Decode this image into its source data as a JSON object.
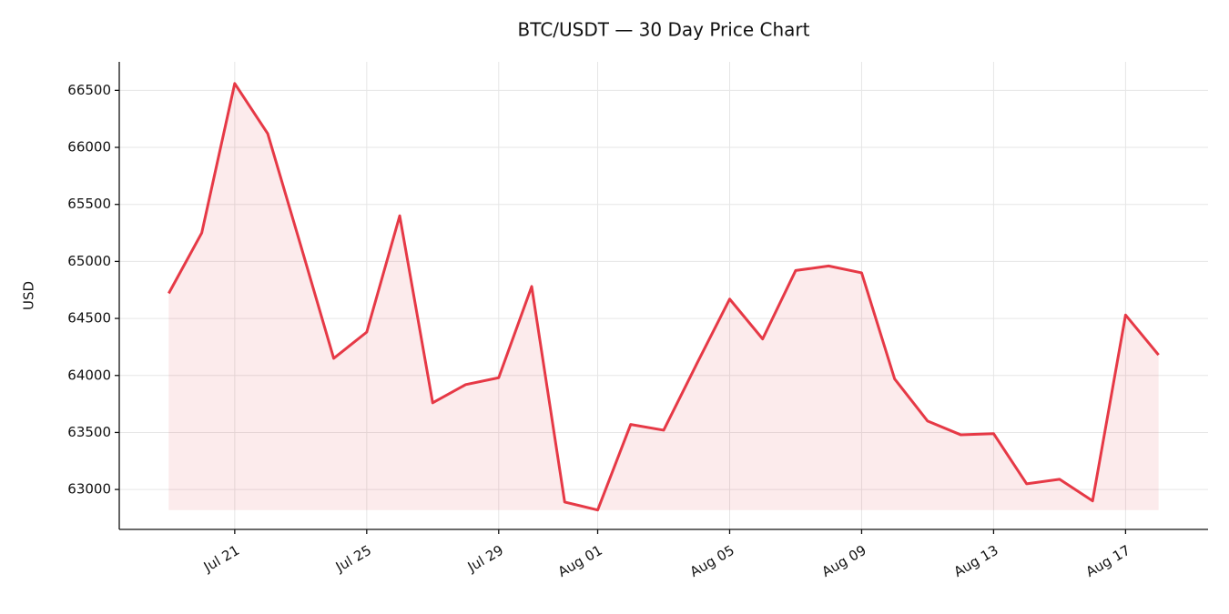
{
  "chart_data": {
    "type": "line",
    "title": "BTC/USDT — 30 Day Price Chart",
    "y_label": "USD",
    "categories": [
      null,
      null,
      "Jul 21",
      null,
      null,
      null,
      "Jul 25",
      null,
      null,
      null,
      "Jul 29",
      null,
      null,
      "Aug 01",
      null,
      null,
      null,
      "Aug 05",
      null,
      null,
      null,
      "Aug 09",
      null,
      null,
      null,
      "Aug 13",
      null,
      null,
      null,
      "Aug 17",
      null
    ],
    "values": [
      64720,
      65250,
      66560,
      66120,
      65140,
      64150,
      64380,
      65400,
      63760,
      63920,
      63980,
      64780,
      62890,
      62820,
      63570,
      63520,
      64100,
      64670,
      64320,
      64920,
      64960,
      64900,
      63970,
      63600,
      63480,
      63490,
      63050,
      63090,
      62900,
      64530,
      64180
    ],
    "color": "#e63946",
    "ylim": [
      62650,
      66750
    ],
    "yticks": [
      63000,
      63500,
      64000,
      64500,
      65000,
      65500,
      66000,
      66500
    ],
    "grid": true,
    "fill": true
  }
}
